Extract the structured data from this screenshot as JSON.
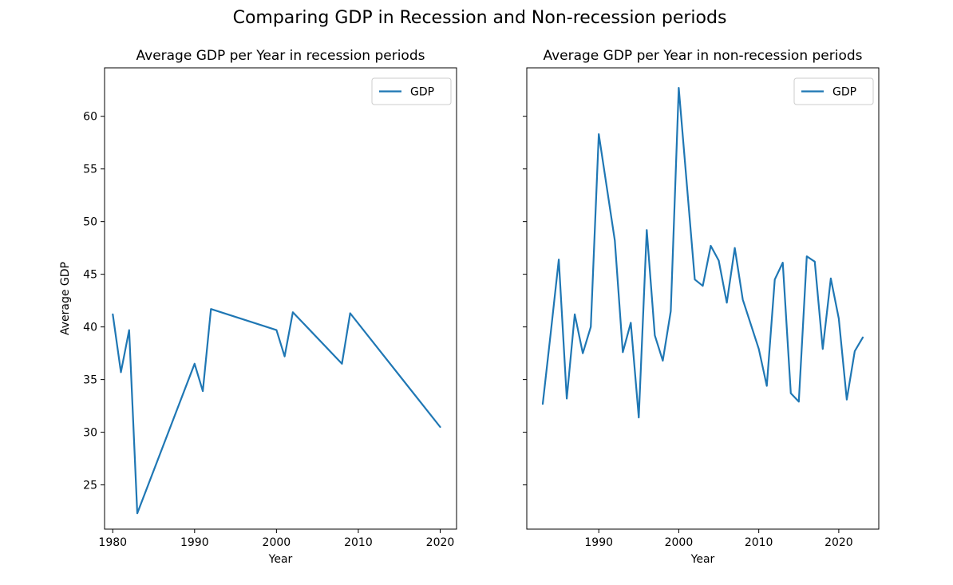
{
  "figure_title": "Comparing GDP in Recession and Non-recession periods",
  "chart_data": [
    {
      "type": "line",
      "title": "Average GDP per Year in recession periods",
      "xlabel": "Year",
      "ylabel": "Average GDP",
      "xlim": [
        1979,
        2022
      ],
      "ylim": [
        20.8,
        64.6
      ],
      "xticks": [
        1980,
        1990,
        2000,
        2010,
        2020
      ],
      "yticks": [
        25,
        30,
        35,
        40,
        45,
        50,
        55,
        60
      ],
      "ytick_labels_visible": true,
      "grid": false,
      "legend": {
        "position": "top-right",
        "entries": [
          "GDP"
        ]
      },
      "color": "#1f77b4",
      "series": [
        {
          "name": "GDP",
          "x": [
            1980,
            1981,
            1982,
            1983,
            1990,
            1991,
            1992,
            2000,
            2001,
            2002,
            2008,
            2009,
            2020
          ],
          "y": [
            41.2,
            35.7,
            39.7,
            22.3,
            36.5,
            33.9,
            41.7,
            39.7,
            37.2,
            41.4,
            36.5,
            41.3,
            30.5
          ]
        }
      ]
    },
    {
      "type": "line",
      "title": "Average GDP per Year in non-recession periods",
      "xlabel": "Year",
      "ylabel": "",
      "xlim": [
        1981,
        2025
      ],
      "ylim": [
        20.8,
        64.6
      ],
      "xticks": [
        1990,
        2000,
        2010,
        2020
      ],
      "yticks": [
        25,
        30,
        35,
        40,
        45,
        50,
        55,
        60
      ],
      "ytick_labels_visible": false,
      "grid": false,
      "legend": {
        "position": "top-right",
        "entries": [
          "GDP"
        ]
      },
      "color": "#1f77b4",
      "series": [
        {
          "name": "GDP",
          "x": [
            1983,
            1984,
            1985,
            1986,
            1987,
            1988,
            1989,
            1990,
            1992,
            1993,
            1994,
            1995,
            1996,
            1997,
            1998,
            1999,
            2000,
            2002,
            2003,
            2004,
            2005,
            2006,
            2007,
            2008,
            2010,
            2011,
            2012,
            2013,
            2014,
            2015,
            2016,
            2017,
            2018,
            2019,
            2020,
            2021,
            2022,
            2023
          ],
          "y": [
            32.7,
            39.5,
            46.4,
            33.2,
            41.2,
            37.5,
            40.0,
            58.3,
            48.2,
            37.6,
            40.4,
            31.4,
            49.2,
            39.2,
            36.8,
            41.5,
            62.7,
            44.5,
            43.9,
            47.7,
            46.3,
            42.3,
            47.5,
            42.6,
            37.9,
            34.4,
            44.5,
            46.1,
            33.7,
            32.9,
            46.7,
            46.2,
            37.9,
            44.6,
            40.8,
            33.1,
            37.7,
            39.0
          ]
        }
      ]
    }
  ]
}
